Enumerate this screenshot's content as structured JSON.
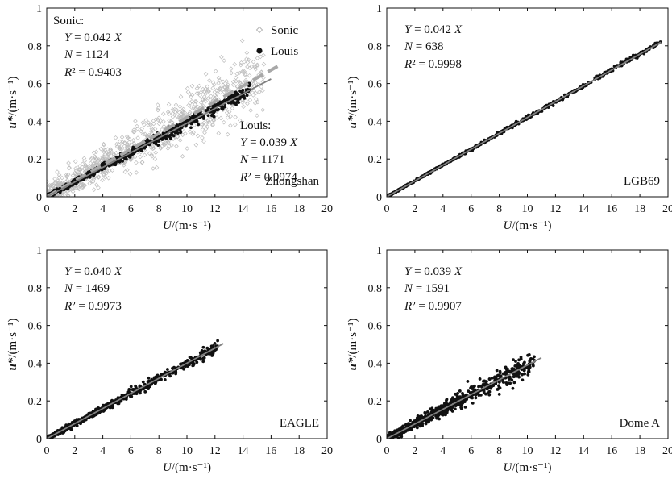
{
  "chart_data": [
    {
      "type": "scatter",
      "station": "Zhongshan",
      "station_label_position": "bottom-right",
      "xlabel_var": "U",
      "xlabel_unit": "/(m·s⁻¹)",
      "ylabel_var": "u*",
      "ylabel_unit": "/(m·s⁻¹)",
      "xlim": [
        0,
        20
      ],
      "ylim": [
        0,
        1
      ],
      "xticks": [
        0,
        2,
        4,
        6,
        8,
        10,
        12,
        14,
        16,
        18,
        20
      ],
      "yticks": [
        0,
        0.2,
        0.4,
        0.6,
        0.8,
        1
      ],
      "legend": {
        "position": "top-right",
        "entries": [
          {
            "label": "Sonic",
            "marker": "open-diamond",
            "color": "#b5b5b5"
          },
          {
            "label": "Louis",
            "marker": "filled-circle",
            "color": "#111111"
          }
        ]
      },
      "series": [
        {
          "name": "Sonic",
          "fit_header": "Sonic:",
          "fit_label": "Y = 0.042 X",
          "n_label": "N = 1124",
          "r2_label": "R² = 0.9403",
          "slope": 0.042,
          "n": 1124,
          "r2": 0.9403,
          "x_range": [
            0,
            15.5
          ],
          "scatter_spread": 0.06,
          "line_color": "#a8a8a8",
          "line_style": "dashed",
          "fit_x_range": [
            0,
            16.7
          ]
        },
        {
          "name": "Louis",
          "fit_header": "Louis:",
          "fit_label": "Y = 0.039 X",
          "n_label": "N = 1171",
          "r2_label": "R² = 0.9974",
          "slope": 0.039,
          "n": 1171,
          "r2": 0.9974,
          "x_range": [
            0,
            14.5
          ],
          "scatter_spread": 0.012,
          "line_color": "#808080",
          "line_style": "solid",
          "fit_x_range": [
            0,
            16
          ]
        }
      ]
    },
    {
      "type": "scatter",
      "station": "LGB69",
      "station_label_position": "bottom-right",
      "xlabel_var": "U",
      "xlabel_unit": "/(m·s⁻¹)",
      "ylabel_var": "u*",
      "ylabel_unit": "/(m·s⁻¹)",
      "xlim": [
        0,
        20
      ],
      "ylim": [
        0,
        1
      ],
      "xticks": [
        0,
        2,
        4,
        6,
        8,
        10,
        12,
        14,
        16,
        18,
        20
      ],
      "yticks": [
        0,
        0.2,
        0.4,
        0.6,
        0.8,
        1
      ],
      "series": [
        {
          "name": "Louis",
          "fit_label": "Y = 0.042 X",
          "n_label": "N = 638",
          "r2_label": "R² = 0.9998",
          "slope": 0.042,
          "n": 638,
          "r2": 0.9998,
          "x_range": [
            0,
            19.5
          ],
          "scatter_spread": 0.004,
          "line_color": "#808080",
          "line_style": "solid",
          "fit_x_range": [
            0,
            19.5
          ]
        }
      ]
    },
    {
      "type": "scatter",
      "station": "EAGLE",
      "station_label_position": "bottom-right",
      "xlabel_var": "U",
      "xlabel_unit": "/(m·s⁻¹)",
      "ylabel_var": "u*",
      "ylabel_unit": "/(m·s⁻¹)",
      "xlim": [
        0,
        20
      ],
      "ylim": [
        0,
        1
      ],
      "xticks": [
        0,
        2,
        4,
        6,
        8,
        10,
        12,
        14,
        16,
        18,
        20
      ],
      "yticks": [
        0,
        0.2,
        0.4,
        0.6,
        0.8,
        1
      ],
      "series": [
        {
          "name": "Louis",
          "fit_label": "Y = 0.040 X",
          "n_label": "N = 1469",
          "r2_label": "R² = 0.9973",
          "slope": 0.04,
          "n": 1469,
          "r2": 0.9973,
          "x_range": [
            0,
            12.2
          ],
          "scatter_spread": 0.01,
          "line_color": "#808080",
          "line_style": "solid",
          "fit_x_range": [
            0,
            12.6
          ]
        }
      ]
    },
    {
      "type": "scatter",
      "station": "Dome A",
      "station_label_position": "bottom-right",
      "xlabel_var": "U",
      "xlabel_unit": "/(m·s⁻¹)",
      "ylabel_var": "u*",
      "ylabel_unit": "/(m·s⁻¹)",
      "xlim": [
        0,
        20
      ],
      "ylim": [
        0,
        1
      ],
      "xticks": [
        0,
        2,
        4,
        6,
        8,
        10,
        12,
        14,
        16,
        18,
        20
      ],
      "yticks": [
        0,
        0.2,
        0.4,
        0.6,
        0.8,
        1
      ],
      "series": [
        {
          "name": "Louis",
          "fit_label": "Y = 0.039 X",
          "n_label": "N = 1591",
          "r2_label": "R² = 0.9907",
          "slope": 0.039,
          "n": 1591,
          "r2": 0.9907,
          "x_range": [
            0,
            10.5
          ],
          "scatter_spread": 0.02,
          "line_color": "#808080",
          "line_style": "solid",
          "fit_x_range": [
            0,
            11
          ]
        }
      ]
    }
  ]
}
